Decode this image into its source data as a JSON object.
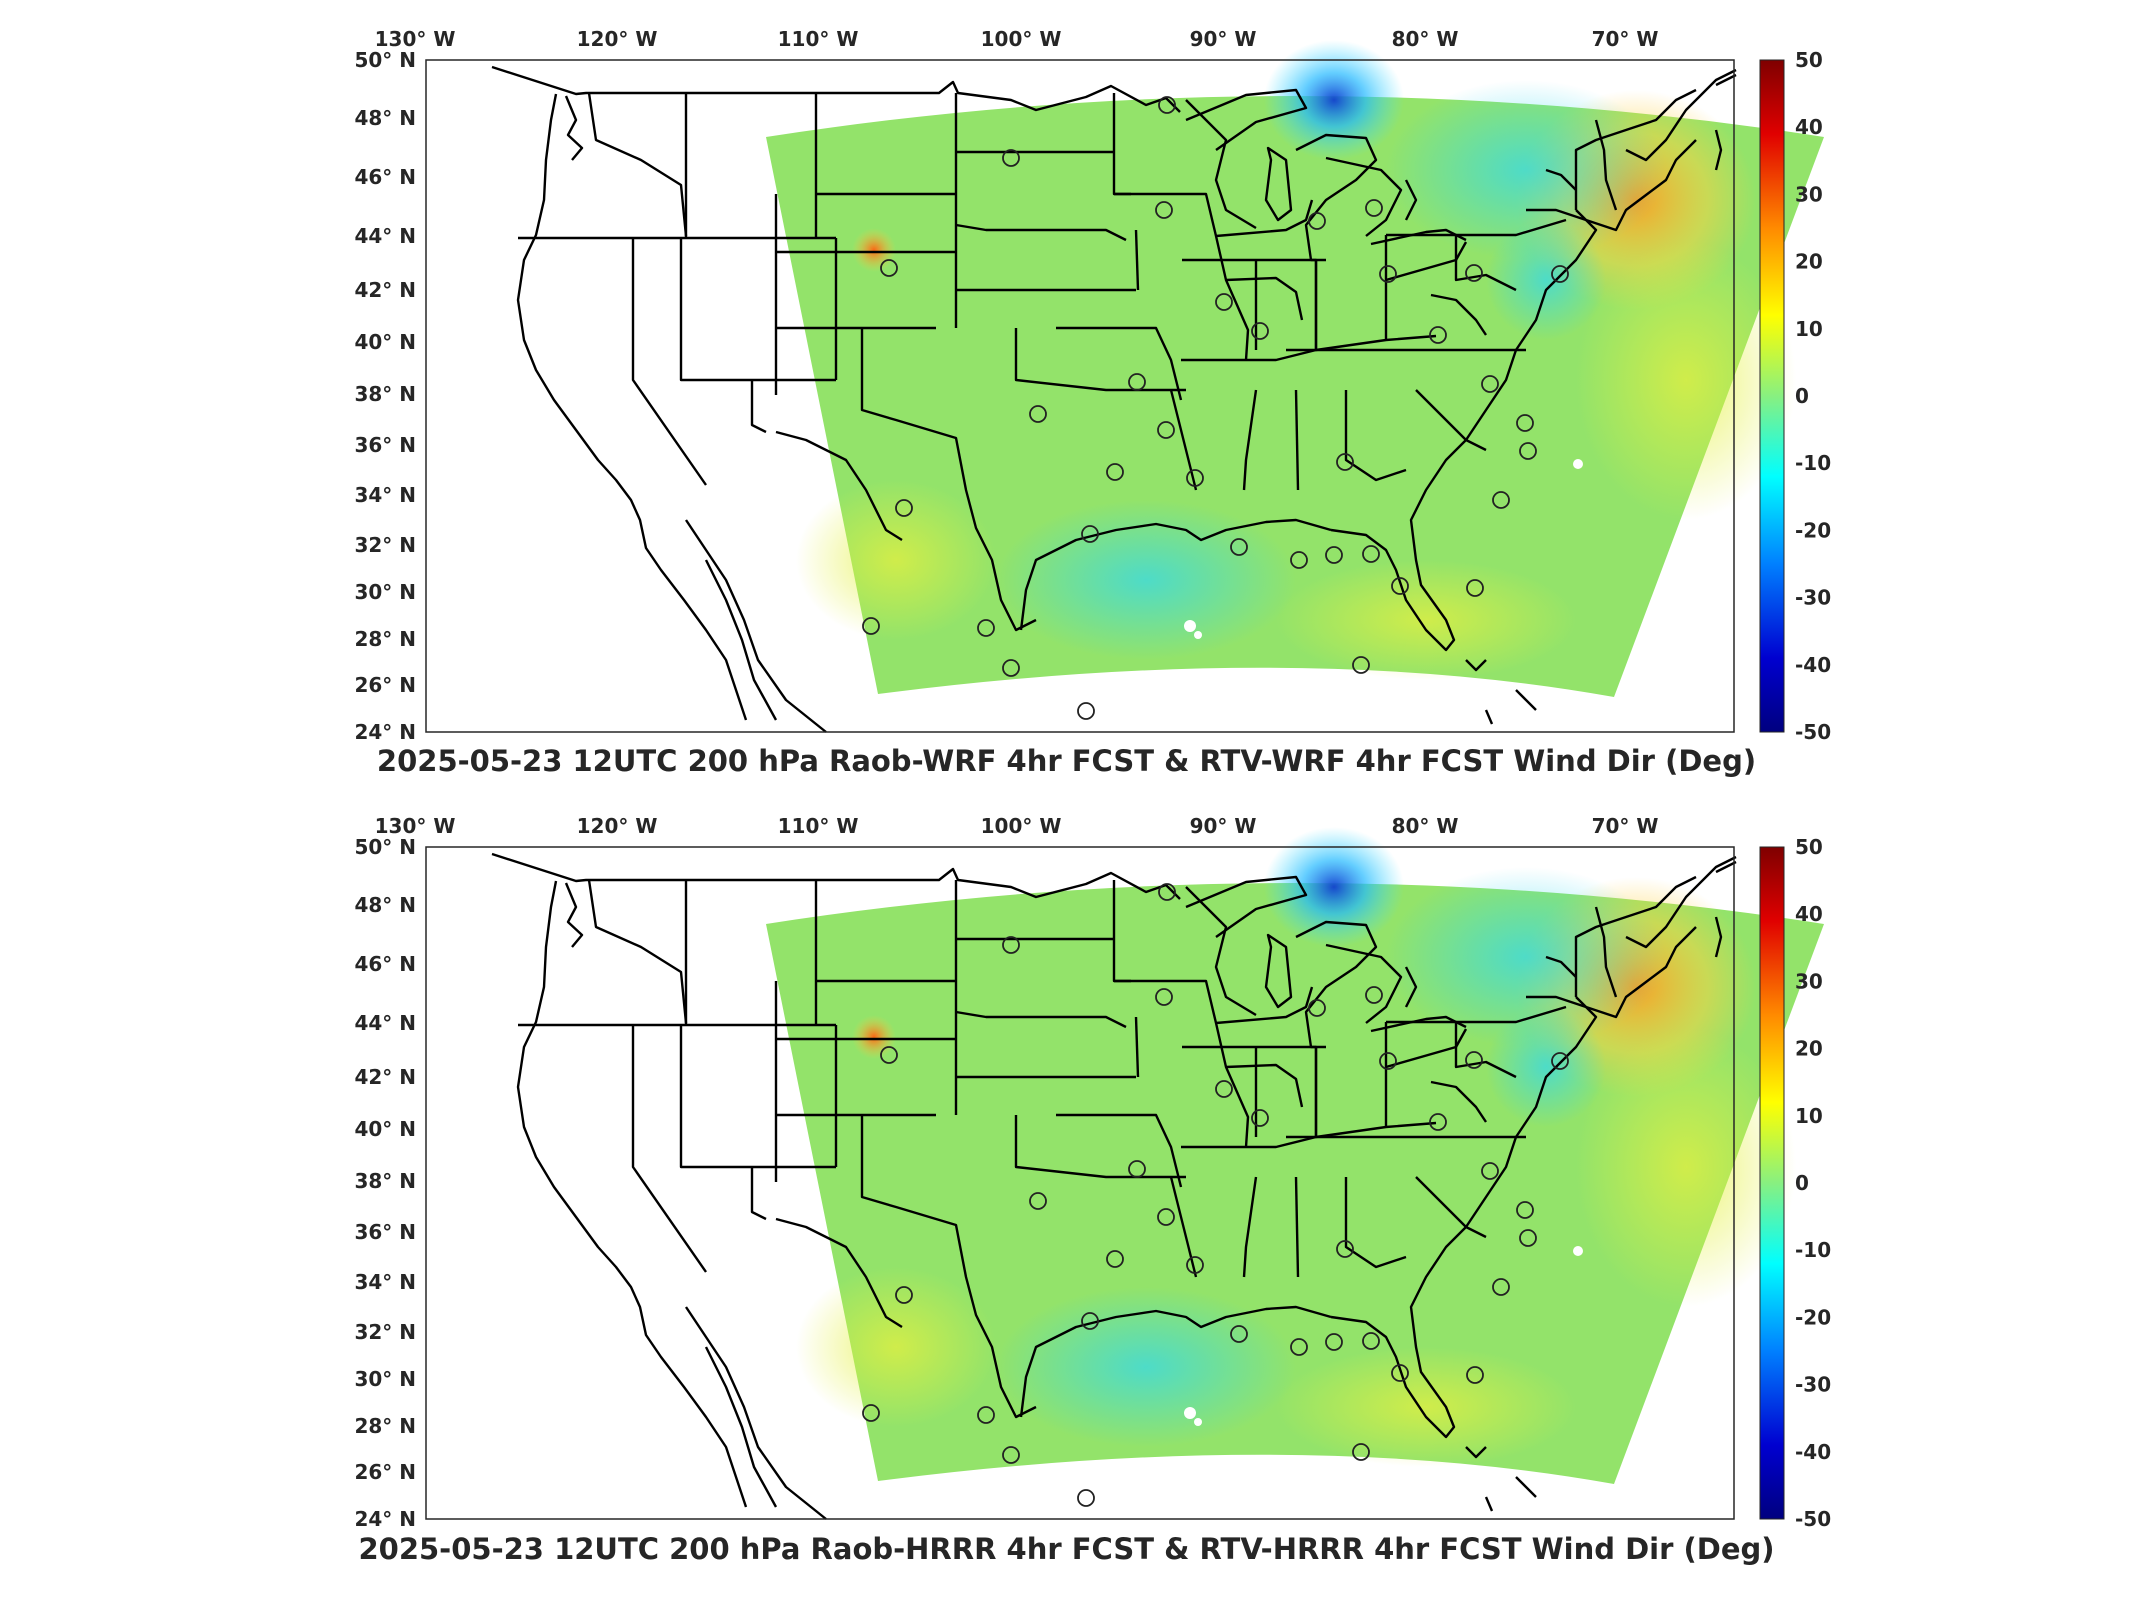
{
  "panels": [
    {
      "title": "2025-05-23 12UTC 200 hPa Raob-WRF 4hr FCST & RTV-WRF 4hr FCST Wind Dir (Deg)"
    },
    {
      "title": "2025-05-23 12UTC 200 hPa Raob-HRRR 4hr FCST & RTV-HRRR 4hr FCST Wind Dir (Deg)"
    }
  ],
  "longitude_ticks": [
    "130° W",
    "120° W",
    "110° W",
    "100° W",
    "90° W",
    "80° W",
    "70° W"
  ],
  "latitude_ticks": [
    "50° N",
    "48° N",
    "46° N",
    "44° N",
    "42° N",
    "40° N",
    "38° N",
    "36° N",
    "34° N",
    "32° N",
    "30° N",
    "28° N",
    "26° N",
    "24° N"
  ],
  "colorbar": {
    "ticks": [
      "50",
      "40",
      "30",
      "20",
      "10",
      "0",
      "-10",
      "-20",
      "-30",
      "-40",
      "-50"
    ],
    "range": [
      -50,
      50
    ],
    "colors": [
      "#7f0000",
      "#ff0000",
      "#ff8c00",
      "#ffff00",
      "#8cff73",
      "#00ffff",
      "#0080ff",
      "#0000c8",
      "#00007f"
    ]
  },
  "colors": {
    "field_base": "#93e36a",
    "boundaries": "#000000"
  }
}
